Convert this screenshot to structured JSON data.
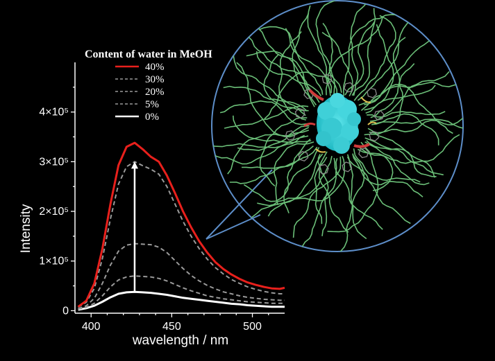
{
  "chart_data": {
    "type": "line",
    "xlabel": "wavelength / nm",
    "ylabel": "Intensity",
    "xlim": [
      390,
      520
    ],
    "ylim": [
      -5000,
      500000
    ],
    "x_ticks": [
      400,
      450,
      500
    ],
    "y_ticks": [
      {
        "value": 0,
        "label": "0"
      },
      {
        "value": 100000,
        "label": "1×10⁵"
      },
      {
        "value": 200000,
        "label": "2×10⁵"
      },
      {
        "value": 300000,
        "label": "3×10⁵"
      },
      {
        "value": 400000,
        "label": "4×10⁵"
      }
    ],
    "legend_title": "Content of water in MeOH",
    "legend_position": "top",
    "arrow": {
      "from": [
        427,
        38000
      ],
      "to": [
        427,
        300000
      ]
    },
    "series": [
      {
        "name": "40%",
        "color": "#e8201c",
        "style": "solid",
        "x": [
          392,
          397,
          402,
          407,
          412,
          417,
          422,
          427,
          432,
          437,
          442,
          447,
          452,
          457,
          462,
          467,
          472,
          477,
          482,
          487,
          492,
          497,
          502,
          507,
          512,
          517,
          520
        ],
        "y": [
          8000,
          20000,
          55000,
          125000,
          215000,
          293000,
          330000,
          338000,
          325000,
          310000,
          300000,
          272000,
          237000,
          200000,
          168000,
          140000,
          117000,
          98000,
          84000,
          73000,
          64000,
          57000,
          52000,
          48000,
          45000,
          44000,
          46000
        ]
      },
      {
        "name": "30%",
        "color": "#9a9a9a",
        "style": "dashed",
        "x": [
          392,
          397,
          402,
          407,
          412,
          417,
          422,
          427,
          432,
          437,
          442,
          447,
          452,
          457,
          462,
          467,
          472,
          477,
          482,
          487,
          492,
          497,
          502,
          507,
          512,
          517,
          520
        ],
        "y": [
          7000,
          17000,
          45000,
          105000,
          185000,
          255000,
          290000,
          300000,
          292000,
          285000,
          275000,
          250000,
          215000,
          180000,
          150000,
          125000,
          104000,
          87000,
          74000,
          63000,
          55000,
          48000,
          43000,
          39000,
          36000,
          34000,
          34000
        ]
      },
      {
        "name": "20%",
        "color": "#9a9a9a",
        "style": "dashed",
        "x": [
          392,
          397,
          402,
          407,
          412,
          417,
          422,
          427,
          432,
          437,
          442,
          447,
          452,
          457,
          462,
          467,
          472,
          477,
          482,
          487,
          492,
          497,
          502,
          507,
          512,
          517,
          520
        ],
        "y": [
          4000,
          10000,
          25000,
          55000,
          92000,
          120000,
          132000,
          135000,
          134000,
          133000,
          128000,
          117000,
          101000,
          85000,
          71000,
          60000,
          51000,
          44000,
          38000,
          34000,
          30000,
          27000,
          25000,
          23000,
          22000,
          21000,
          21000
        ]
      },
      {
        "name": "5%",
        "color": "#9a9a9a",
        "style": "dashed",
        "x": [
          392,
          397,
          402,
          407,
          412,
          417,
          422,
          427,
          432,
          437,
          442,
          447,
          452,
          457,
          462,
          467,
          472,
          477,
          482,
          487,
          492,
          497,
          502,
          507,
          512,
          517,
          520
        ],
        "y": [
          3000,
          7000,
          15000,
          30000,
          48000,
          62000,
          68000,
          70000,
          69000,
          68000,
          65000,
          60000,
          53000,
          46000,
          40000,
          35000,
          30000,
          27000,
          24000,
          22000,
          20000,
          18000,
          17000,
          16000,
          15000,
          15000,
          15000
        ]
      },
      {
        "name": "0%",
        "color": "#ffffff",
        "style": "solid",
        "x": [
          392,
          397,
          402,
          407,
          412,
          417,
          422,
          427,
          432,
          437,
          442,
          447,
          452,
          457,
          462,
          467,
          472,
          477,
          482,
          487,
          492,
          497,
          502,
          507,
          512,
          517,
          520
        ],
        "y": [
          2000,
          5000,
          10000,
          18000,
          27000,
          34000,
          37000,
          38000,
          37000,
          36000,
          34000,
          32000,
          29000,
          26000,
          24000,
          22000,
          20000,
          18000,
          16000,
          14000,
          13000,
          11000,
          10000,
          9000,
          8000,
          8000,
          8000
        ]
      }
    ]
  }
}
